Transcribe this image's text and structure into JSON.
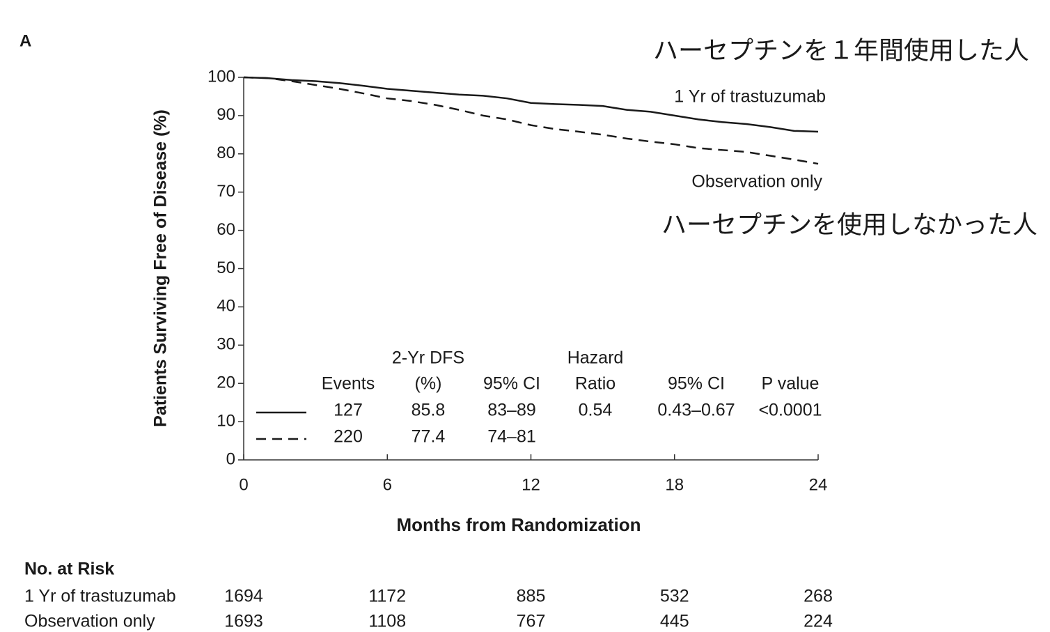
{
  "chart_data": {
    "type": "line",
    "panel_label": "A",
    "annotations": [
      "ハーセプチンを１年間使用した人",
      "ハーセプチンを使用しなかった人"
    ],
    "ylabel": "Patients Surviving Free of Disease (%)",
    "xlabel": "Months from Randomization",
    "x": [
      0,
      1,
      2,
      3,
      4,
      5,
      6,
      7,
      8,
      9,
      10,
      11,
      12,
      13,
      14,
      15,
      16,
      17,
      18,
      19,
      20,
      21,
      22,
      23,
      24
    ],
    "xlim": [
      0,
      24
    ],
    "xticks": [
      0,
      6,
      12,
      18,
      24
    ],
    "ylim": [
      0,
      100
    ],
    "yticks": [
      0,
      10,
      20,
      30,
      40,
      50,
      60,
      70,
      80,
      90,
      100
    ],
    "series": [
      {
        "name": "1 Yr of trastuzumab",
        "color": "#1a1a1a",
        "dash": false,
        "values": [
          100,
          99.8,
          99.3,
          99,
          98.5,
          97.8,
          97,
          96.5,
          96,
          95.5,
          95.2,
          94.5,
          93.3,
          93,
          92.8,
          92.5,
          91.5,
          91,
          90,
          89,
          88.3,
          87.8,
          87,
          86,
          85.8
        ]
      },
      {
        "name": "Observation only",
        "color": "#1a1a1a",
        "dash": true,
        "values": [
          100,
          99.8,
          99,
          98,
          97,
          95.8,
          94.5,
          93.8,
          92.8,
          91.5,
          90,
          89,
          87.5,
          86.5,
          85.8,
          85,
          84,
          83.2,
          82.5,
          81.5,
          81,
          80.5,
          79.5,
          78.5,
          77.4
        ]
      }
    ],
    "stats_table": {
      "columns": [
        {
          "label": "Events"
        },
        {
          "label_top": "2-Yr DFS",
          "label": "(%)"
        },
        {
          "label": "95% CI"
        },
        {
          "label_top": "Hazard",
          "label": "Ratio"
        },
        {
          "label": "95% CI"
        },
        {
          "label": "P value"
        }
      ],
      "rows": [
        {
          "values": [
            127,
            85.8,
            "83–89",
            0.54,
            "0.43–0.67",
            "<0.0001"
          ]
        },
        {
          "values": [
            220,
            77.4,
            "74–81"
          ]
        }
      ]
    },
    "risk_table": {
      "title": "No. at Risk",
      "rows": [
        {
          "values": [
            1694,
            1172,
            885,
            532,
            268
          ]
        },
        {
          "values": [
            1693,
            1108,
            767,
            445,
            224
          ]
        }
      ]
    }
  }
}
